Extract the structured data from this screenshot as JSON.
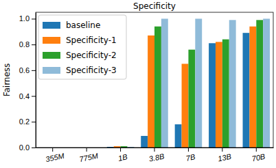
{
  "chart_data": {
    "type": "bar",
    "title": "Specificity",
    "y_label": "Fairness",
    "categories": [
      "355M",
      "775M",
      "1B",
      "3.8B",
      "7B",
      "13B",
      "70B"
    ],
    "series": [
      {
        "name": "baseline",
        "color": "#1f77b4",
        "values": [
          0.0,
          0.0,
          0.005,
          0.09,
          0.18,
          0.81,
          0.89
        ]
      },
      {
        "name": "Specificity-1",
        "color": "#ff7f0e",
        "values": [
          0.0,
          0.0,
          0.01,
          0.87,
          0.65,
          0.82,
          0.94
        ]
      },
      {
        "name": "Specificity-2",
        "color": "#2ca02c",
        "values": [
          0.0,
          0.0,
          0.01,
          0.94,
          0.76,
          0.84,
          0.99
        ]
      },
      {
        "name": "Specificity-3",
        "color": "#8fbbd9",
        "values": [
          0.0,
          0.0,
          0.005,
          1.0,
          1.0,
          0.99,
          1.0
        ]
      }
    ],
    "ylim": [
      0,
      1.05
    ],
    "yticks": [
      {
        "value": 0,
        "label": "0.0"
      },
      0.2,
      0.4,
      0.6,
      0.8,
      {
        "value": 1,
        "label": "1.0"
      }
    ],
    "grid": false,
    "legend": "upper left"
  }
}
